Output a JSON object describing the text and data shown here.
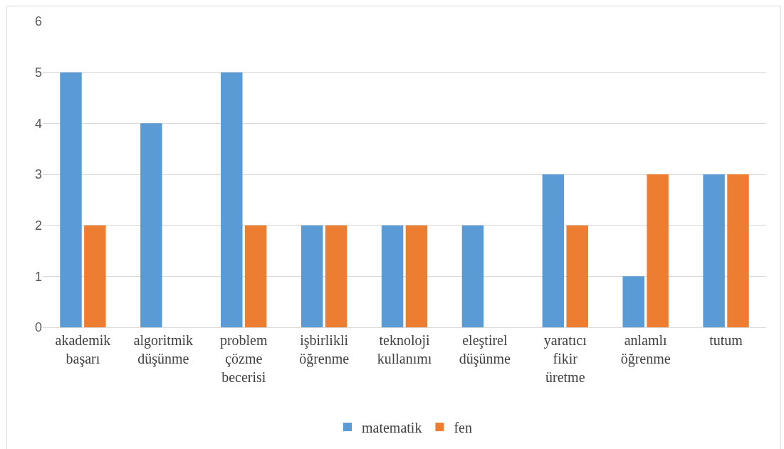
{
  "chart_data": {
    "type": "bar",
    "categories": [
      "akademik başarı",
      "algoritmik düşünme",
      "problem çözme becerisi",
      "işbirlikli öğrenme",
      "teknoloji kullanımı",
      "eleştirel düşünme",
      "yaratıcı fikir üretme",
      "anlamlı öğrenme",
      "tutum"
    ],
    "series": [
      {
        "name": "matematik",
        "color": "#5b9bd5",
        "values": [
          5,
          4,
          5,
          2,
          2,
          2,
          3,
          1,
          3
        ]
      },
      {
        "name": "fen",
        "color": "#ed7d31",
        "values": [
          2,
          null,
          2,
          2,
          2,
          null,
          2,
          3,
          3
        ]
      }
    ],
    "ylim": [
      0,
      6
    ],
    "yticks": [
      0,
      1,
      2,
      3,
      4,
      5,
      6
    ],
    "grid": "y",
    "legend": "bottom"
  }
}
